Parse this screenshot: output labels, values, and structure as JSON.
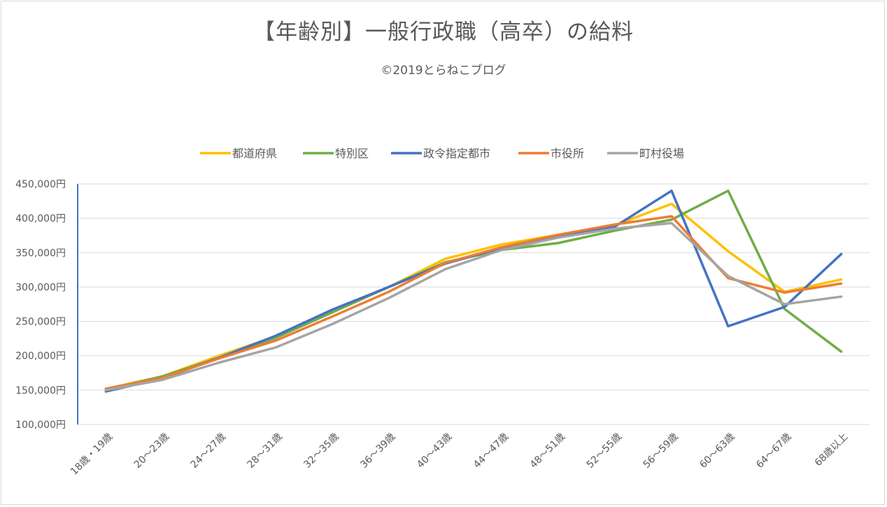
{
  "chart_data": {
    "type": "line",
    "title": "【年齢別】一般行政職（高卒）の給料",
    "subtitle": "©2019とらねこブログ",
    "categories": [
      "18歳・19歳",
      "20～23歳",
      "24～27歳",
      "28～31歳",
      "32～35歳",
      "36～39歳",
      "40～43歳",
      "44～47歳",
      "48～51歳",
      "52～55歳",
      "56～59歳",
      "60～63歳",
      "64～67歳",
      "68歳以上"
    ],
    "yticks": [
      "100,000円",
      "150,000円",
      "200,000円",
      "250,000円",
      "300,000円",
      "350,000円",
      "400,000円",
      "450,000円"
    ],
    "ylim": [
      100000,
      450000
    ],
    "ystep": 50000,
    "grid": true,
    "legend_position": "top",
    "series": [
      {
        "name": "都道府県",
        "color": "#FFC000",
        "values": [
          152000,
          170000,
          200000,
          228000,
          265000,
          300000,
          341000,
          362000,
          376000,
          390000,
          421000,
          352000,
          293000,
          311000
        ]
      },
      {
        "name": "特別区",
        "color": "#70AD47",
        "values": [
          151000,
          170000,
          197000,
          226000,
          263000,
          300000,
          336000,
          354000,
          364000,
          382000,
          398000,
          440000,
          268000,
          206000
        ]
      },
      {
        "name": "政令指定都市",
        "color": "#4472C4",
        "values": [
          148000,
          167000,
          197000,
          229000,
          267000,
          300000,
          334000,
          357000,
          374000,
          388000,
          440000,
          243000,
          271000,
          348000
        ]
      },
      {
        "name": "市役所",
        "color": "#ED7D31",
        "values": [
          152000,
          168000,
          196000,
          222000,
          257000,
          293000,
          335000,
          358000,
          376000,
          391000,
          403000,
          313000,
          292000,
          305000
        ]
      },
      {
        "name": "町村役場",
        "color": "#A5A5A5",
        "values": [
          150000,
          165000,
          190000,
          212000,
          246000,
          284000,
          326000,
          354000,
          372000,
          385000,
          393000,
          316000,
          275000,
          286000
        ]
      }
    ]
  }
}
